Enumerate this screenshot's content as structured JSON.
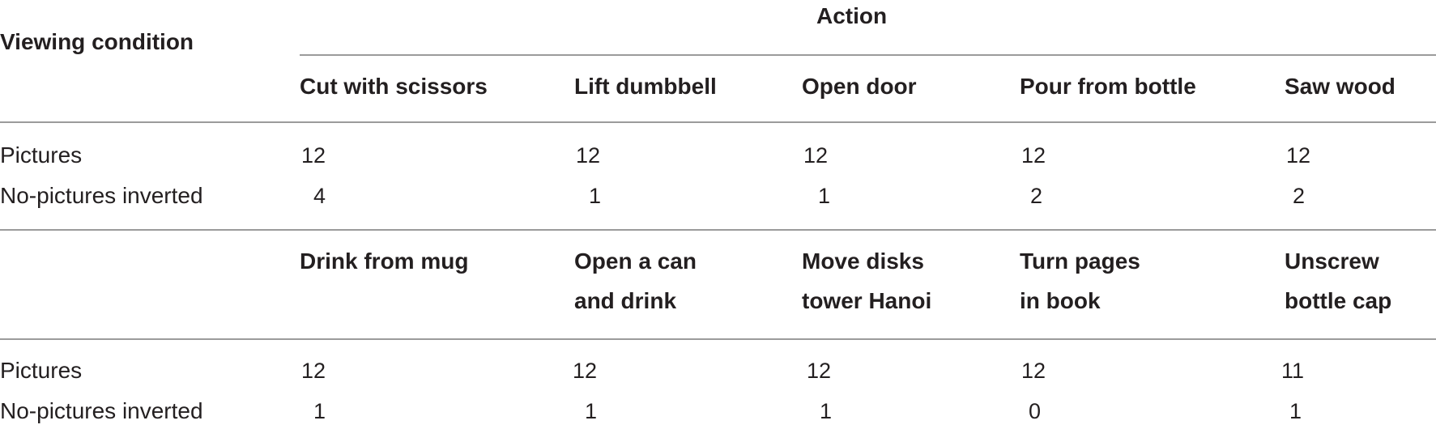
{
  "table": {
    "header": {
      "viewing_condition": "Viewing condition",
      "action": "Action"
    },
    "block1": {
      "actions": [
        "Cut with scissors",
        "Lift dumbbell",
        "Open door",
        "Pour from bottle",
        "Saw wood"
      ],
      "rows": [
        {
          "label": "Pictures",
          "values": [
            "12",
            "12",
            "12",
            "12",
            "12"
          ]
        },
        {
          "label": "No-pictures inverted",
          "values": [
            "4",
            "1",
            "1",
            "2",
            "2"
          ]
        }
      ]
    },
    "block2": {
      "actions": [
        {
          "line1": "Drink from mug",
          "line2": ""
        },
        {
          "line1": "Open a can",
          "line2": "and drink"
        },
        {
          "line1": "Move disks",
          "line2": "tower Hanoi"
        },
        {
          "line1": "Turn pages",
          "line2": "in book"
        },
        {
          "line1": "Unscrew",
          "line2": "bottle cap"
        }
      ],
      "rows": [
        {
          "label": "Pictures",
          "values": [
            "12",
            "12",
            "12",
            "12",
            "11"
          ]
        },
        {
          "label": "No-pictures inverted",
          "values": [
            "1",
            "1",
            "1",
            "0",
            "1"
          ]
        }
      ]
    }
  }
}
